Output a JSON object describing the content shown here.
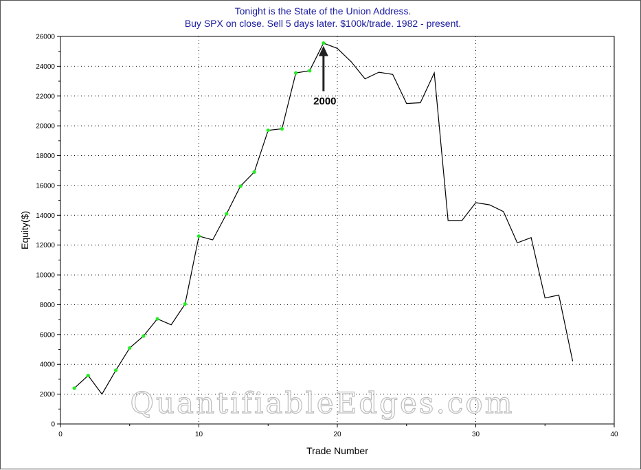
{
  "chart_data": {
    "type": "line",
    "title": [
      "Tonight is the State of the Union Address.",
      "Buy SPX on close. Sell 5 days later. $100k/trade. 1982 - present."
    ],
    "xlabel": "Trade Number",
    "ylabel": "Equity($)",
    "xlim": [
      0,
      40
    ],
    "ylim": [
      0,
      26000
    ],
    "xticks": [
      0,
      10,
      20,
      30,
      40
    ],
    "yticks": [
      0,
      2000,
      4000,
      6000,
      8000,
      10000,
      12000,
      14000,
      16000,
      18000,
      20000,
      22000,
      24000,
      26000
    ],
    "grid": true,
    "x": [
      1,
      2,
      3,
      4,
      5,
      6,
      7,
      8,
      9,
      10,
      11,
      12,
      13,
      14,
      15,
      16,
      17,
      18,
      19,
      20,
      21,
      22,
      23,
      24,
      25,
      26,
      27,
      28,
      29,
      30,
      31,
      32,
      33,
      34,
      35,
      36,
      37
    ],
    "series": [
      {
        "values": [
          2400,
          3250,
          2000,
          3600,
          5100,
          5900,
          7050,
          6650,
          8050,
          12600,
          12350,
          14100,
          15950,
          16900,
          19700,
          19800,
          23550,
          23700,
          25550,
          25200,
          24300,
          23150,
          23600,
          23450,
          21500,
          21550,
          23550,
          13650,
          13650,
          14850,
          14700,
          14250,
          12150,
          12500,
          8450,
          8650,
          4200
        ],
        "color": "#000000",
        "highlight_color": "#22ee22",
        "highlighted_x": [
          1,
          2,
          4,
          5,
          6,
          7,
          9,
          10,
          12,
          13,
          14,
          15,
          16,
          17,
          18,
          19
        ]
      }
    ],
    "annotations": [
      {
        "text": "2000",
        "x": 19,
        "y": 25550
      }
    ],
    "watermark": "QuantifiableEdges.com"
  }
}
